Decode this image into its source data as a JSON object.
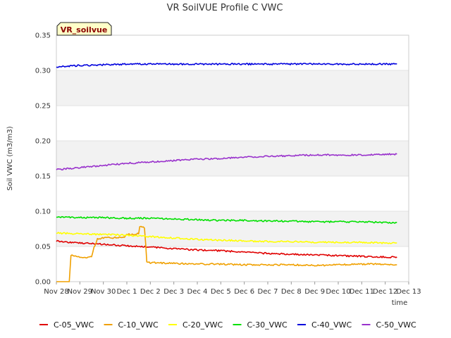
{
  "chart_data": {
    "type": "line",
    "title": "VR SoilVUE Profile C VWC",
    "xlabel": "time",
    "ylabel": "Soil VWC (m3/m3)",
    "badge": "VR_soilvue",
    "ylim": [
      0.0,
      0.35
    ],
    "y_ticks": [
      "0.00",
      "0.05",
      "0.10",
      "0.15",
      "0.20",
      "0.25",
      "0.30",
      "0.35"
    ],
    "x_ticks": [
      "Nov 28",
      "Nov 29",
      "Nov 30",
      "Dec 1",
      "Dec 2",
      "Dec 3",
      "Dec 4",
      "Dec 5",
      "Dec 6",
      "Dec 7",
      "Dec 8",
      "Dec 9",
      "Dec 10",
      "Dec 11",
      "Dec 12",
      "Dec 13"
    ],
    "xlim_days": [
      0,
      15
    ],
    "grid": "horizontal bands",
    "legend_position": "bottom",
    "series": [
      {
        "name": "C-05_VWC",
        "color": "#e00000",
        "points": [
          [
            0.0,
            0.058
          ],
          [
            0.5,
            0.056
          ],
          [
            1.0,
            0.055
          ],
          [
            2.0,
            0.053
          ],
          [
            3.0,
            0.051
          ],
          [
            4.0,
            0.049
          ],
          [
            5.0,
            0.047
          ],
          [
            6.0,
            0.045
          ],
          [
            7.0,
            0.044
          ],
          [
            8.0,
            0.042
          ],
          [
            9.0,
            0.04
          ],
          [
            10.0,
            0.039
          ],
          [
            11.0,
            0.038
          ],
          [
            12.0,
            0.037
          ],
          [
            13.0,
            0.036
          ],
          [
            14.0,
            0.035
          ],
          [
            14.5,
            0.035
          ]
        ]
      },
      {
        "name": "C-10_VWC",
        "color": "#f0a000",
        "points": [
          [
            0.0,
            0.0
          ],
          [
            0.55,
            0.0
          ],
          [
            0.62,
            0.038
          ],
          [
            1.0,
            0.035
          ],
          [
            1.3,
            0.034
          ],
          [
            1.5,
            0.036
          ],
          [
            1.6,
            0.049
          ],
          [
            1.65,
            0.051
          ],
          [
            1.75,
            0.061
          ],
          [
            2.0,
            0.062
          ],
          [
            2.9,
            0.063
          ],
          [
            3.0,
            0.067
          ],
          [
            3.5,
            0.068
          ],
          [
            3.55,
            0.078
          ],
          [
            3.75,
            0.077
          ],
          [
            3.85,
            0.029
          ],
          [
            4.0,
            0.027
          ],
          [
            5.0,
            0.026
          ],
          [
            6.0,
            0.025
          ],
          [
            7.0,
            0.025
          ],
          [
            8.0,
            0.024
          ],
          [
            9.0,
            0.024
          ],
          [
            10.0,
            0.024
          ],
          [
            11.0,
            0.023
          ],
          [
            12.0,
            0.024
          ],
          [
            13.0,
            0.025
          ],
          [
            14.0,
            0.025
          ],
          [
            14.5,
            0.024
          ]
        ]
      },
      {
        "name": "C-20_VWC",
        "color": "#ffff00",
        "points": [
          [
            0.0,
            0.069
          ],
          [
            1.0,
            0.068
          ],
          [
            2.0,
            0.067
          ],
          [
            3.0,
            0.066
          ],
          [
            4.0,
            0.064
          ],
          [
            5.0,
            0.062
          ],
          [
            6.0,
            0.06
          ],
          [
            7.0,
            0.059
          ],
          [
            8.0,
            0.058
          ],
          [
            9.0,
            0.057
          ],
          [
            10.0,
            0.057
          ],
          [
            11.0,
            0.056
          ],
          [
            12.0,
            0.056
          ],
          [
            13.0,
            0.056
          ],
          [
            14.0,
            0.055
          ],
          [
            14.5,
            0.055
          ]
        ]
      },
      {
        "name": "C-30_VWC",
        "color": "#00e000",
        "points": [
          [
            0.0,
            0.092
          ],
          [
            1.0,
            0.091
          ],
          [
            2.0,
            0.091
          ],
          [
            3.0,
            0.09
          ],
          [
            4.0,
            0.09
          ],
          [
            5.0,
            0.089
          ],
          [
            6.0,
            0.088
          ],
          [
            7.0,
            0.087
          ],
          [
            8.0,
            0.087
          ],
          [
            9.0,
            0.086
          ],
          [
            10.0,
            0.086
          ],
          [
            11.0,
            0.085
          ],
          [
            12.0,
            0.085
          ],
          [
            13.0,
            0.085
          ],
          [
            14.0,
            0.084
          ],
          [
            14.5,
            0.084
          ]
        ]
      },
      {
        "name": "C-40_VWC",
        "color": "#0000dd",
        "points": [
          [
            0.0,
            0.305
          ],
          [
            1.0,
            0.307
          ],
          [
            2.0,
            0.308
          ],
          [
            3.0,
            0.309
          ],
          [
            4.0,
            0.309
          ],
          [
            5.0,
            0.309
          ],
          [
            6.0,
            0.309
          ],
          [
            7.0,
            0.309
          ],
          [
            8.0,
            0.309
          ],
          [
            9.0,
            0.309
          ],
          [
            10.0,
            0.309
          ],
          [
            11.0,
            0.309
          ],
          [
            12.0,
            0.309
          ],
          [
            13.0,
            0.309
          ],
          [
            14.0,
            0.309
          ],
          [
            14.5,
            0.309
          ]
        ]
      },
      {
        "name": "C-50_VWC",
        "color": "#9932cc",
        "points": [
          [
            0.0,
            0.159
          ],
          [
            1.0,
            0.162
          ],
          [
            2.0,
            0.165
          ],
          [
            3.0,
            0.168
          ],
          [
            4.0,
            0.17
          ],
          [
            5.0,
            0.172
          ],
          [
            6.0,
            0.174
          ],
          [
            7.0,
            0.175
          ],
          [
            8.0,
            0.177
          ],
          [
            9.0,
            0.178
          ],
          [
            10.0,
            0.179
          ],
          [
            11.0,
            0.18
          ],
          [
            12.0,
            0.18
          ],
          [
            13.0,
            0.18
          ],
          [
            14.0,
            0.181
          ],
          [
            14.5,
            0.181
          ]
        ]
      }
    ]
  }
}
